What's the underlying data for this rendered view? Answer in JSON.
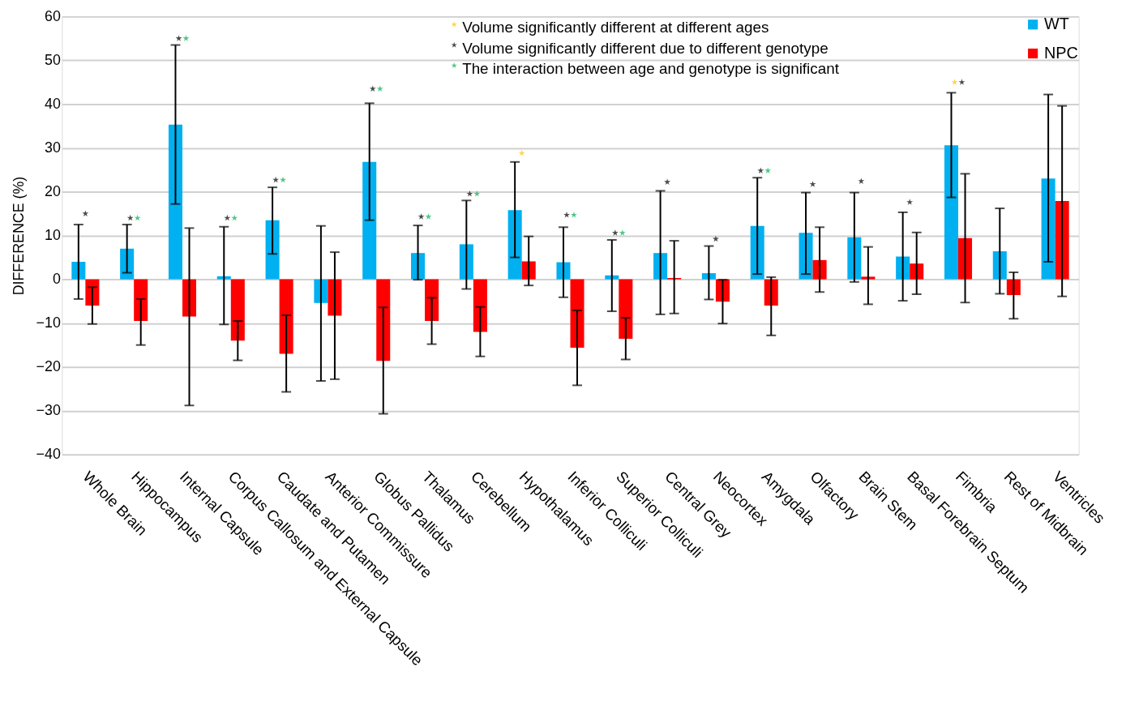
{
  "chart_data": {
    "type": "bar",
    "ylabel": "DIFFERENCE (%)",
    "categories": [
      "Whole Brain",
      "Hippocampus",
      "Internal Capsule",
      "Corpus Callosum and External Capsule",
      "Caudate and Putamen",
      "Anterior Commissure",
      "Globus Pallidus",
      "Thalamus",
      "Cerebellum",
      "Hypothalamus",
      "Inferior Colliculi",
      "Superior Colliculi",
      "Central Grey",
      "Neocortex",
      "Amygdala",
      "Olfactory",
      "Brain Stem",
      "Basal Forebrain Septum",
      "Fimbria",
      "Rest of Midbrain",
      "Ventricles"
    ],
    "series": [
      {
        "name": "WT",
        "color": "#00b0f0",
        "values": [
          4,
          7,
          35.3,
          0.7,
          13.5,
          -5.4,
          26.8,
          6,
          8,
          15.8,
          3.9,
          0.9,
          6,
          1.4,
          12.2,
          10.6,
          9.6,
          5.2,
          30.6,
          6.4,
          23
        ],
        "errors": [
          [
            -4.5,
            12.5
          ],
          [
            1.5,
            12.5
          ],
          [
            17.2,
            53.5
          ],
          [
            -10.3,
            12
          ],
          [
            5.8,
            21
          ],
          [
            -23.2,
            12.2
          ],
          [
            13.5,
            40.2
          ],
          [
            -0.1,
            12.3
          ],
          [
            -2.2,
            18
          ],
          [
            5,
            26.8
          ],
          [
            -4.1,
            11.9
          ],
          [
            -7.3,
            9
          ],
          [
            -8,
            20.2
          ],
          [
            -4.6,
            7.6
          ],
          [
            1.2,
            23.2
          ],
          [
            1.2,
            19.8
          ],
          [
            -0.6,
            19.8
          ],
          [
            -4.9,
            15.3
          ],
          [
            18.7,
            42.6
          ],
          [
            -3.3,
            16.2
          ],
          [
            4,
            42.2
          ]
        ]
      },
      {
        "name": "NPC",
        "color": "#ff0000",
        "values": [
          -6,
          -9.5,
          -8.5,
          -14,
          -17,
          -8.3,
          -18.6,
          -9.5,
          -12,
          4.1,
          -15.6,
          -13.6,
          0.3,
          -5.1,
          -6,
          4.4,
          0.6,
          3.6,
          9.4,
          -3.6,
          17.9
        ],
        "errors": [
          [
            -10.2,
            -1.8
          ],
          [
            -15,
            -4.5
          ],
          [
            -28.8,
            11.7
          ],
          [
            -18.5,
            -9.5
          ],
          [
            -25.7,
            -8.2
          ],
          [
            -22.8,
            6.2
          ],
          [
            -30.7,
            -6.4
          ],
          [
            -14.8,
            -4.2
          ],
          [
            -17.6,
            -6.3
          ],
          [
            -1.4,
            9.8
          ],
          [
            -24.2,
            -7.1
          ],
          [
            -18.3,
            -8.8
          ],
          [
            -7.8,
            8.8
          ],
          [
            -10.1,
            -0.1
          ],
          [
            -12.8,
            0.5
          ],
          [
            -2.9,
            11.9
          ],
          [
            -5.7,
            7.4
          ],
          [
            -3.4,
            10.7
          ],
          [
            -5.3,
            24.1
          ],
          [
            -9,
            1.6
          ],
          [
            -3.9,
            39.6
          ]
        ]
      },
      {
        "name": "Volume significantly different at different ages",
        "type": "scatter",
        "marker": "star",
        "color": "#ffc000",
        "values": [
          null,
          null,
          null,
          null,
          null,
          null,
          null,
          null,
          null,
          28.8,
          null,
          null,
          null,
          null,
          null,
          null,
          null,
          null,
          45,
          null,
          null
        ]
      },
      {
        "name": "Volume significantly different due to different genotype",
        "type": "scatter",
        "marker": "star",
        "color": "#000000",
        "values": [
          15,
          14,
          55,
          14,
          22.7,
          null,
          43.5,
          14.3,
          19.5,
          null,
          14.7,
          10.6,
          22.2,
          9.2,
          24.8,
          21.7,
          22.4,
          17.6,
          45,
          null,
          null
        ]
      },
      {
        "name": "The interaction between age and genotype is significant",
        "type": "scatter",
        "marker": "star",
        "color": "#00b050",
        "values": [
          null,
          14,
          55,
          14,
          22.7,
          null,
          43.5,
          14.3,
          19.5,
          null,
          14.7,
          10.6,
          null,
          null,
          24.8,
          null,
          null,
          null,
          null,
          null,
          null
        ]
      }
    ],
    "ylim": [
      -40,
      60
    ],
    "yticks": [
      -40,
      -30,
      -20,
      -10,
      0,
      10,
      20,
      30,
      40,
      50,
      60
    ],
    "grid": "y",
    "legend": "top right"
  }
}
